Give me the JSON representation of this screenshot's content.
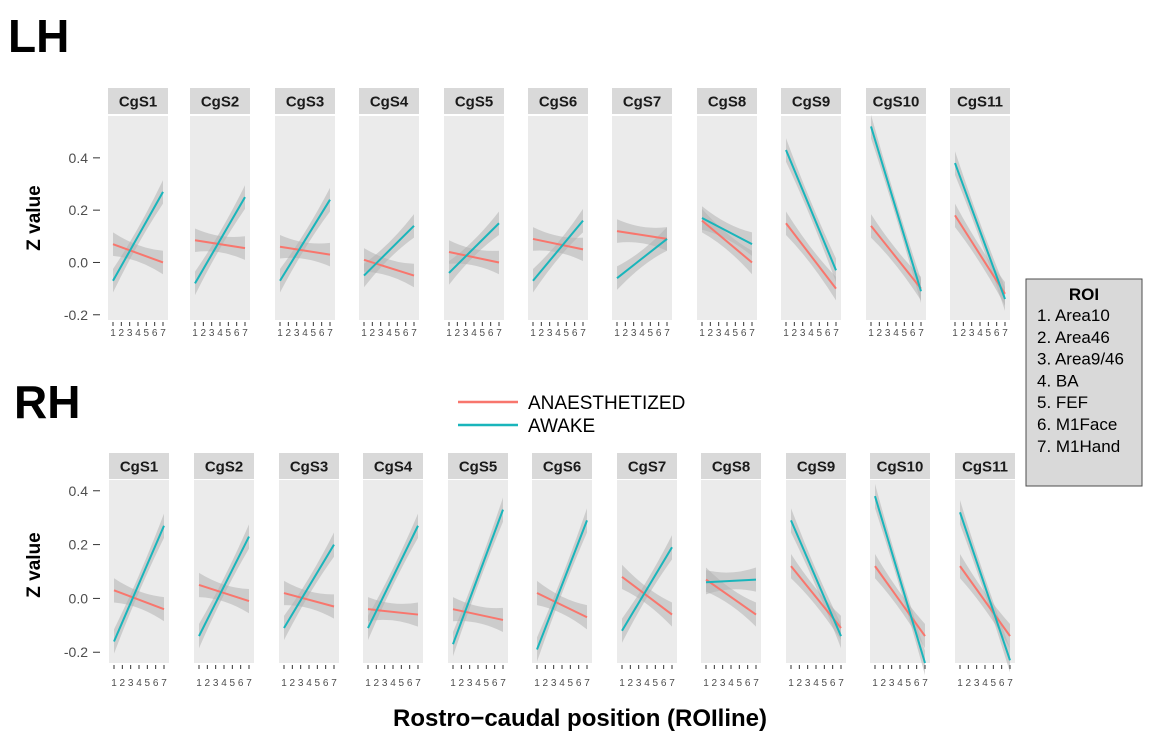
{
  "chart_data": [
    {
      "type": "line",
      "title": "LH",
      "ylabel": "Z value",
      "xlabel": "Rostro−caudal position (ROIline)",
      "ylim": [
        -0.22,
        0.56
      ],
      "yticks": [
        "-0.2",
        "0.0",
        "0.2",
        "0.4"
      ],
      "x_ticks": [
        "1",
        "2",
        "3",
        "4",
        "5",
        "6",
        "7"
      ],
      "x_range": [
        1,
        7
      ],
      "grid": false,
      "panels": [
        {
          "name": "CgS1",
          "ANAESTHETIZED": [
            0.07,
            0.0
          ],
          "AWAKE": [
            -0.07,
            0.27
          ]
        },
        {
          "name": "CgS2",
          "ANAESTHETIZED": [
            0.085,
            0.055
          ],
          "AWAKE": [
            -0.08,
            0.25
          ]
        },
        {
          "name": "CgS3",
          "ANAESTHETIZED": [
            0.06,
            0.03
          ],
          "AWAKE": [
            -0.07,
            0.24
          ]
        },
        {
          "name": "CgS4",
          "ANAESTHETIZED": [
            0.01,
            -0.05
          ],
          "AWAKE": [
            -0.05,
            0.14
          ]
        },
        {
          "name": "CgS5",
          "ANAESTHETIZED": [
            0.04,
            0.0
          ],
          "AWAKE": [
            -0.04,
            0.15
          ]
        },
        {
          "name": "CgS6",
          "ANAESTHETIZED": [
            0.09,
            0.05
          ],
          "AWAKE": [
            -0.07,
            0.16
          ]
        },
        {
          "name": "CgS7",
          "ANAESTHETIZED": [
            0.12,
            0.09
          ],
          "AWAKE": [
            -0.06,
            0.09
          ]
        },
        {
          "name": "CgS8",
          "ANAESTHETIZED": [
            0.16,
            0.0
          ],
          "AWAKE": [
            0.17,
            0.07
          ]
        },
        {
          "name": "CgS9",
          "ANAESTHETIZED": [
            0.15,
            -0.1
          ],
          "AWAKE": [
            0.43,
            -0.03
          ]
        },
        {
          "name": "CgS10",
          "ANAESTHETIZED": [
            0.14,
            -0.1
          ],
          "AWAKE": [
            0.52,
            -0.11
          ]
        },
        {
          "name": "CgS11",
          "ANAESTHETIZED": [
            0.18,
            -0.12
          ],
          "AWAKE": [
            0.38,
            -0.14
          ]
        }
      ]
    },
    {
      "type": "line",
      "title": "RH",
      "ylabel": "Z value",
      "xlabel": "Rostro−caudal position (ROIline)",
      "ylim": [
        -0.24,
        0.44
      ],
      "yticks": [
        "-0.2",
        "0.0",
        "0.2",
        "0.4"
      ],
      "x_ticks": [
        "1",
        "2",
        "3",
        "4",
        "5",
        "6",
        "7"
      ],
      "x_range": [
        1,
        7
      ],
      "grid": false,
      "panels": [
        {
          "name": "CgS1",
          "ANAESTHETIZED": [
            0.03,
            -0.04
          ],
          "AWAKE": [
            -0.16,
            0.27
          ]
        },
        {
          "name": "CgS2",
          "ANAESTHETIZED": [
            0.05,
            -0.01
          ],
          "AWAKE": [
            -0.14,
            0.23
          ]
        },
        {
          "name": "CgS3",
          "ANAESTHETIZED": [
            0.02,
            -0.03
          ],
          "AWAKE": [
            -0.11,
            0.2
          ]
        },
        {
          "name": "CgS4",
          "ANAESTHETIZED": [
            -0.04,
            -0.06
          ],
          "AWAKE": [
            -0.11,
            0.27
          ]
        },
        {
          "name": "CgS5",
          "ANAESTHETIZED": [
            -0.04,
            -0.08
          ],
          "AWAKE": [
            -0.17,
            0.33
          ]
        },
        {
          "name": "CgS6",
          "ANAESTHETIZED": [
            0.02,
            -0.07
          ],
          "AWAKE": [
            -0.19,
            0.29
          ]
        },
        {
          "name": "CgS7",
          "ANAESTHETIZED": [
            0.08,
            -0.06
          ],
          "AWAKE": [
            -0.12,
            0.19
          ]
        },
        {
          "name": "CgS8",
          "ANAESTHETIZED": [
            0.07,
            -0.06
          ],
          "AWAKE": [
            0.06,
            0.07
          ]
        },
        {
          "name": "CgS9",
          "ANAESTHETIZED": [
            0.12,
            -0.11
          ],
          "AWAKE": [
            0.29,
            -0.14
          ]
        },
        {
          "name": "CgS10",
          "ANAESTHETIZED": [
            0.12,
            -0.14
          ],
          "AWAKE": [
            0.38,
            -0.24
          ]
        },
        {
          "name": "CgS11",
          "ANAESTHETIZED": [
            0.12,
            -0.14
          ],
          "AWAKE": [
            0.32,
            -0.23
          ]
        }
      ]
    }
  ],
  "series": [
    {
      "name": "ANAESTHETIZED",
      "color": "#f8766d"
    },
    {
      "name": "AWAKE",
      "color": "#19b5bb"
    }
  ],
  "legend": {
    "items": [
      "ANAESTHETIZED",
      "AWAKE"
    ],
    "placement": "center"
  },
  "roi_box": {
    "title": "ROI",
    "items": [
      "1. Area10",
      "2. Area46",
      "3. Area9/46",
      "4. BA",
      "5. FEF",
      "6. M1Face",
      "7. M1Hand"
    ]
  },
  "colors": {
    "panel_bg": "#ebebeb",
    "strip_bg": "#d9d9d9",
    "ribbon": "#b3b3b3",
    "roi_box_bg": "#d9d9d9"
  }
}
